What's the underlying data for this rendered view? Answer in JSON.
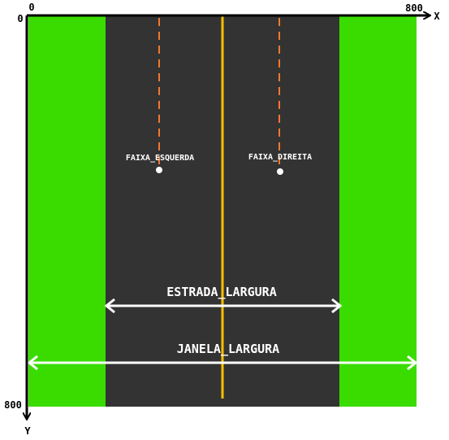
{
  "axes": {
    "x_origin_label": "0",
    "x_max_label": "800",
    "x_axis_name": "X",
    "y_origin_label": "0",
    "y_max_label": "800",
    "y_axis_name": "Y"
  },
  "lanes": {
    "left_label": "FAIXA_ESQUERDA",
    "right_label": "FAIXA_DIREITA"
  },
  "dimensions": {
    "road_width_label": "ESTRADA_LARGURA",
    "window_width_label": "JANELA_LARGURA"
  },
  "colors": {
    "grass": "#3adc00",
    "road": "#333333",
    "center_line": "#ffbf00",
    "lane_dash": "#f07830",
    "arrow": "#ffffff",
    "axis": "#000000"
  }
}
